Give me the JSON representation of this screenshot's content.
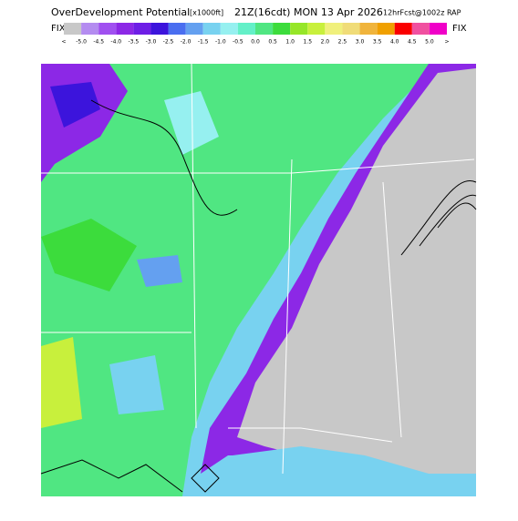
{
  "header": {
    "title": "OverDevelopment Potential",
    "units": "[x1000ft]",
    "time": "21Z(16cdt) MON 13 Apr 2026",
    "fcst": "12hrFcst@1002z RAP"
  },
  "legend": {
    "left": "FIX",
    "right": "FIX",
    "labels": [
      "<",
      "-5.0",
      "-4.5",
      "-4.0",
      "-3.5",
      "-3.0",
      "-2.5",
      "-2.0",
      "-1.5",
      "-1.0",
      "-0.5",
      "0.0",
      "0.5",
      "1.0",
      "1.5",
      "2.0",
      "2.5",
      "3.0",
      "3.5",
      "4.0",
      "4.5",
      "5.0",
      ">"
    ],
    "colors": [
      "#c8c8c8",
      "#b48cf0",
      "#a050f0",
      "#8c28e6",
      "#6e1ee6",
      "#3c14dc",
      "#4a6ef0",
      "#64a0f0",
      "#78d2f0",
      "#96f0f0",
      "#64f0c8",
      "#50e682",
      "#3cdc3c",
      "#96e628",
      "#c8f03c",
      "#f0f07c",
      "#f0dc78",
      "#f0b43c",
      "#f0a000",
      "#fa0000",
      "#f050a0",
      "#f000c8"
    ]
  }
}
